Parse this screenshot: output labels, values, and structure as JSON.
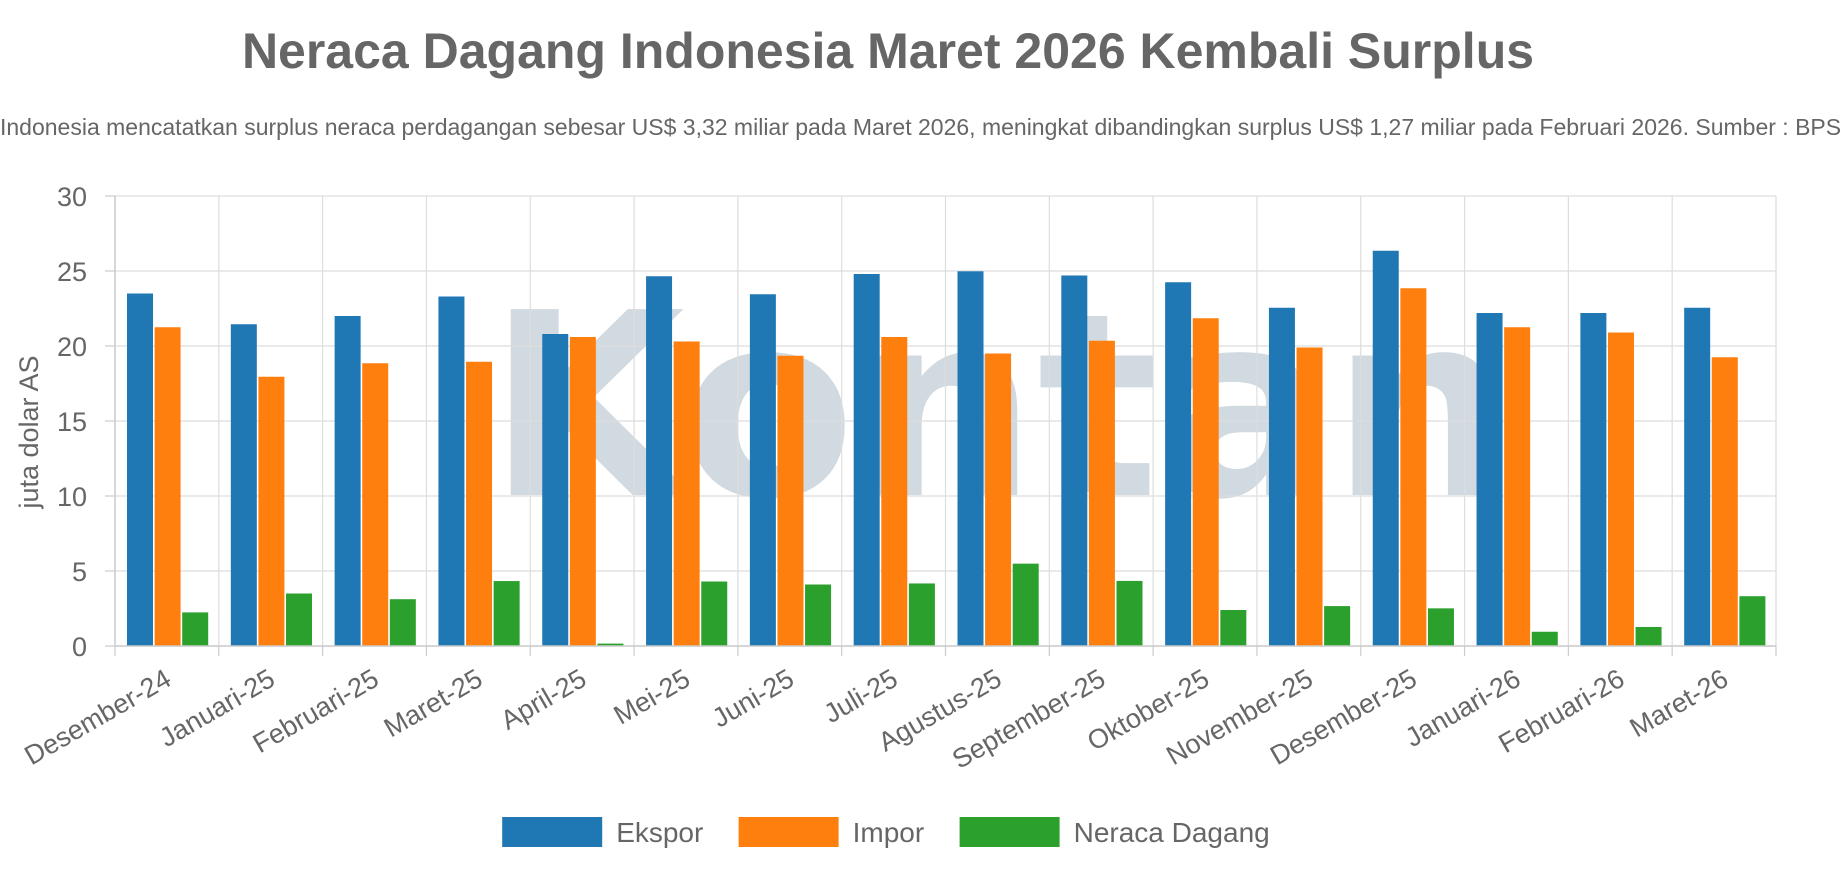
{
  "chart_data": {
    "type": "bar",
    "title": "Neraca Dagang Indonesia Maret 2026 Kembali Surplus",
    "subtitle": "Indonesia mencatatkan surplus neraca perdagangan sebesar US$ 3,32 miliar pada Maret 2026, meningkat dibandingkan surplus US$ 1,27 miliar pada Februari 2026. Sumber : BPS",
    "xlabel": "",
    "ylabel": "juta dolar AS",
    "ylim": [
      0,
      30
    ],
    "yticks": [
      0,
      5,
      10,
      15,
      20,
      25,
      30
    ],
    "grid": true,
    "legend_position": "bottom",
    "watermark": "Kontan",
    "categories": [
      "Desember-24",
      "Januari-25",
      "Februari-25",
      "Maret-25",
      "April-25",
      "Mei-25",
      "Juni-25",
      "Juli-25",
      "Agustus-25",
      "September-25",
      "Oktober-25",
      "November-25",
      "Desember-25",
      "Januari-26",
      "Februari-26",
      "Maret-26"
    ],
    "series": [
      {
        "name": "Ekspor",
        "color": "#1f77b4",
        "values": [
          23.5,
          21.45,
          22.0,
          23.3,
          20.8,
          24.65,
          23.45,
          24.8,
          24.98,
          24.7,
          24.25,
          22.55,
          26.35,
          22.2,
          22.2,
          22.55
        ]
      },
      {
        "name": "Impor",
        "color": "#ff7f0e",
        "values": [
          21.25,
          17.95,
          18.85,
          18.95,
          20.6,
          20.3,
          19.35,
          20.6,
          19.5,
          20.35,
          21.85,
          19.9,
          23.85,
          21.25,
          20.9,
          19.25
        ]
      },
      {
        "name": "Neraca Dagang",
        "color": "#2ca02c",
        "values": [
          2.24,
          3.5,
          3.12,
          4.33,
          0.16,
          4.3,
          4.1,
          4.17,
          5.49,
          4.34,
          2.4,
          2.66,
          2.51,
          0.95,
          1.27,
          3.32
        ]
      }
    ]
  }
}
